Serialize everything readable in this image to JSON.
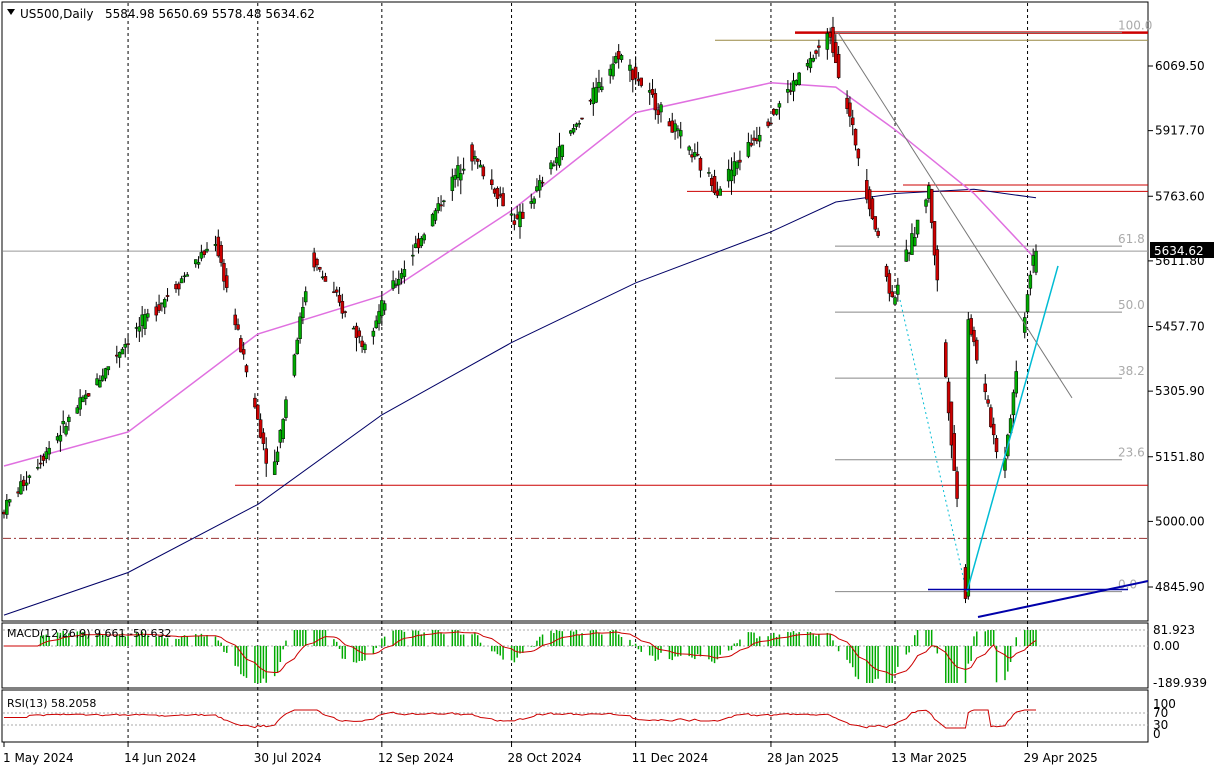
{
  "header": {
    "symbol": "US500,Daily",
    "ohlc": "5584.98 5650.69 5578.48 5634.62"
  },
  "price_axis": {
    "ticks": [
      "6069.50",
      "5917.70",
      "5763.60",
      "5611.80",
      "5457.70",
      "5305.90",
      "5151.80",
      "5000.00",
      "4845.90"
    ],
    "current_price": "5634.62"
  },
  "fibonacci": {
    "levels": [
      "100.0",
      "61.8",
      "50.0",
      "38.2",
      "23.6",
      "0.0"
    ]
  },
  "macd": {
    "label": "MACD(12,26,9) 9.661 -50.632",
    "ticks": [
      "81.923",
      "0.00",
      "-189.939"
    ]
  },
  "rsi": {
    "label": "RSI(13) 58.2058",
    "ticks": [
      "100",
      "70",
      "30",
      "0"
    ]
  },
  "time_axis": {
    "labels": [
      "1 May 2024",
      "14 Jun 2024",
      "30 Jul 2024",
      "12 Sep 2024",
      "28 Oct 2024",
      "11 Dec 2024",
      "28 Jan 2025",
      "13 Mar 2025",
      "29 Apr 2025"
    ]
  },
  "colors": {
    "bull": "#00aa00",
    "bear": "#cc0000",
    "ma_fast": "#e070e0",
    "ma_slow": "#000066",
    "support_line": "#cc0000",
    "trend_blue": "#00bcd4",
    "channel_blue": "#0000aa",
    "grid": "#000000"
  },
  "chart_data": {
    "type": "candlestick",
    "symbol": "US500",
    "timeframe": "Daily",
    "last": {
      "open": 5584.98,
      "high": 5650.69,
      "low": 5578.48,
      "close": 5634.62
    },
    "key_points": [
      {
        "date": "1 May 2024",
        "price": 5020
      },
      {
        "date": "14 Jun 2024",
        "price": 5420
      },
      {
        "date": "16 Jul 2024",
        "price": 5660
      },
      {
        "date": "5 Aug 2024",
        "price": 5100
      },
      {
        "date": "19 Aug 2024",
        "price": 5620
      },
      {
        "date": "6 Sep 2024",
        "price": 5420
      },
      {
        "date": "14 Oct 2024",
        "price": 5870
      },
      {
        "date": "31 Oct 2024",
        "price": 5700
      },
      {
        "date": "6 Dec 2024",
        "price": 6100
      },
      {
        "date": "10 Jan 2025",
        "price": 5780
      },
      {
        "date": "19 Feb 2025",
        "price": 6145
      },
      {
        "date": "13 Mar 2025",
        "price": 5520
      },
      {
        "date": "26 Mar 2025",
        "price": 5780
      },
      {
        "date": "8 Apr 2025",
        "price": 4830
      },
      {
        "date": "9 Apr 2025",
        "price": 5480
      },
      {
        "date": "21 Apr 2025",
        "price": 5110
      },
      {
        "date": "2 May 2025",
        "price": 5634.62
      }
    ],
    "ma_fast_points": [
      {
        "date": "1 May 2024",
        "price": 5130
      },
      {
        "date": "14 Jun 2024",
        "price": 5210
      },
      {
        "date": "30 Jul 2024",
        "price": 5440
      },
      {
        "date": "12 Sep 2024",
        "price": 5530
      },
      {
        "date": "28 Oct 2024",
        "price": 5730
      },
      {
        "date": "11 Dec 2024",
        "price": 5960
      },
      {
        "date": "28 Jan 2025",
        "price": 6030
      },
      {
        "date": "20 Feb 2025",
        "price": 6020
      },
      {
        "date": "13 Mar 2025",
        "price": 5920
      },
      {
        "date": "10 Apr 2025",
        "price": 5770
      },
      {
        "date": "2 May 2025",
        "price": 5615
      }
    ],
    "ma_slow_points": [
      {
        "date": "1 May 2024",
        "price": 4780
      },
      {
        "date": "14 Jun 2024",
        "price": 4880
      },
      {
        "date": "30 Jul 2024",
        "price": 5040
      },
      {
        "date": "12 Sep 2024",
        "price": 5250
      },
      {
        "date": "28 Oct 2024",
        "price": 5420
      },
      {
        "date": "11 Dec 2024",
        "price": 5560
      },
      {
        "date": "28 Jan 2025",
        "price": 5680
      },
      {
        "date": "20 Feb 2025",
        "price": 5750
      },
      {
        "date": "13 Mar 2025",
        "price": 5770
      },
      {
        "date": "10 Apr 2025",
        "price": 5780
      },
      {
        "date": "2 May 2025",
        "price": 5760
      }
    ],
    "horizontal_levels": [
      6148,
      6130,
      5790,
      5775,
      5085,
      4960
    ],
    "fibonacci_range": {
      "high": 6148,
      "low": 4835
    },
    "ylim": [
      4800,
      6160
    ]
  }
}
